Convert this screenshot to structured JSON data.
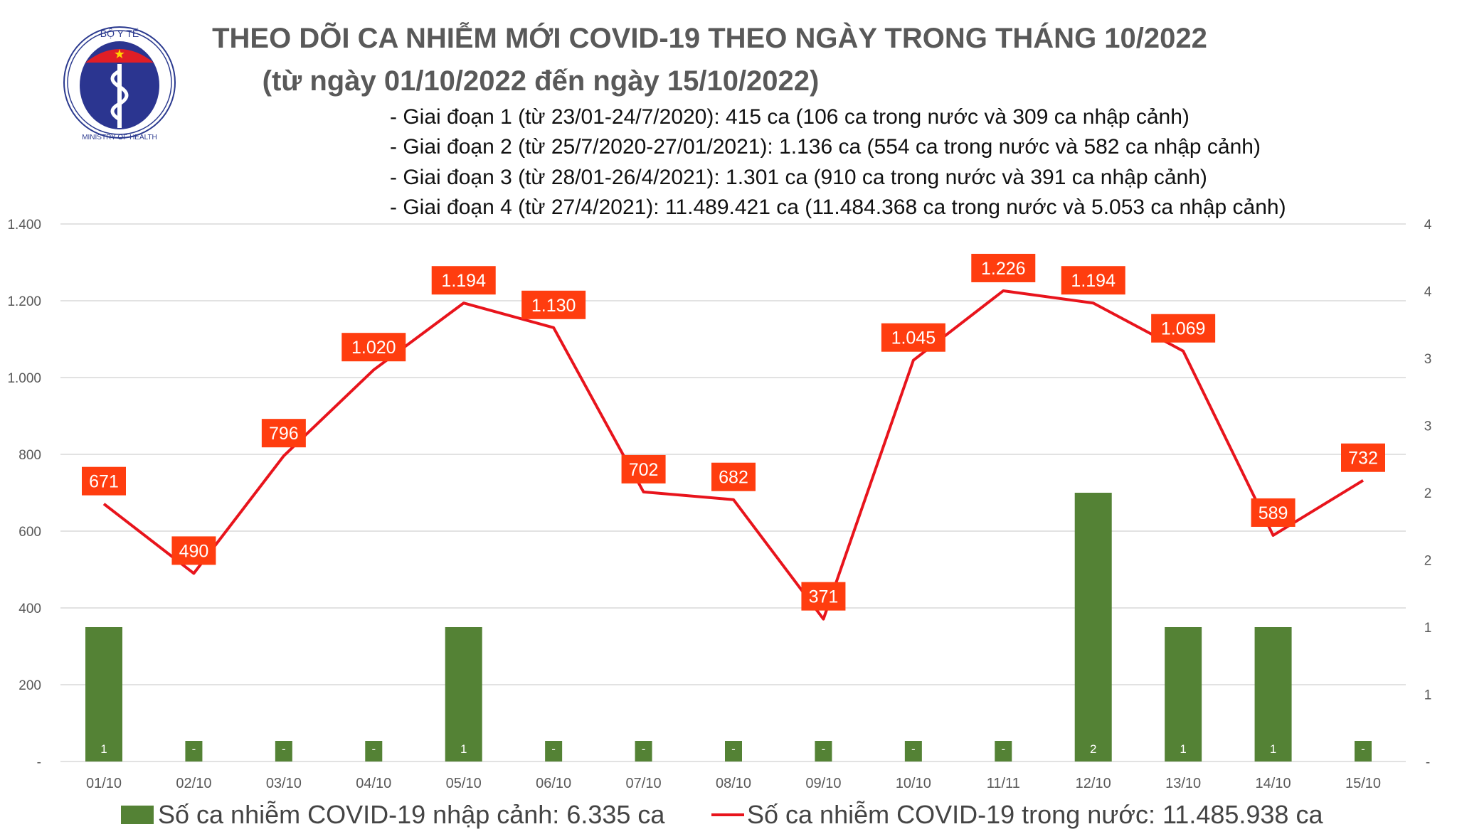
{
  "logo": {
    "top_text": "BỘ Y TẾ",
    "bottom_text": "MINISTRY OF HEALTH"
  },
  "title_line1": "THEO DÕI CA NHIỄM MỚI COVID-19 THEO NGÀY TRONG THÁNG 10/2022",
  "title_line2": "(từ ngày 01/10/2022 đến ngày 15/10/2022)",
  "notes": [
    "- Giai đoạn 1 (từ 23/01-24/7/2020): 415 ca (106 ca trong nước và 309 ca nhập cảnh)",
    "- Giai đoạn 2 (từ 25/7/2020-27/01/2021): 1.136 ca (554 ca trong nước và 582 ca nhập cảnh)",
    "- Giai đoạn 3 (từ 28/01-26/4/2021): 1.301 ca (910 ca trong nước và 391 ca nhập cảnh)",
    "- Giai đoạn 4 (từ 27/4/2021): 11.489.421 ca (11.484.368 ca trong nước và 5.053 ca nhập cảnh)"
  ],
  "chart_data": {
    "type": "bar+line",
    "categories": [
      "01/10",
      "02/10",
      "03/10",
      "04/10",
      "05/10",
      "06/10",
      "07/10",
      "08/10",
      "09/10",
      "10/10",
      "11/11",
      "12/10",
      "13/10",
      "14/10",
      "15/10"
    ],
    "series": [
      {
        "name": "Số ca nhiễm COVID-19 nhập cảnh: 6.335 ca",
        "type": "bar",
        "axis": "right",
        "color": "#548235",
        "values": [
          1,
          0,
          0,
          0,
          1,
          0,
          0,
          0,
          0,
          0,
          0,
          2,
          1,
          1,
          0
        ],
        "labels": [
          "1",
          "-",
          "-",
          "-",
          "1",
          "-",
          "-",
          "-",
          "-",
          "-",
          "-",
          "2",
          "1",
          "1",
          "-"
        ]
      },
      {
        "name": "Số ca nhiễm COVID-19 trong nước: 11.485.938 ca",
        "type": "line",
        "axis": "left",
        "color": "#e8141c",
        "label_bg": "#ff3d0f",
        "values": [
          671,
          490,
          796,
          1020,
          1194,
          1130,
          702,
          682,
          371,
          1045,
          1226,
          1194,
          1069,
          589,
          732
        ],
        "labels": [
          "671",
          "490",
          "796",
          "1.020",
          "1.194",
          "1.130",
          "702",
          "682",
          "371",
          "1.045",
          "1.226",
          "1.194",
          "1.069",
          "589",
          "732"
        ]
      }
    ],
    "left_axis": {
      "ylim": [
        0,
        1400
      ],
      "ticks": [
        "-",
        "200",
        "400",
        "600",
        "800",
        "1.000",
        "1.200",
        "1.400"
      ]
    },
    "right_axis": {
      "ylim": [
        0,
        4
      ],
      "ticks": [
        "-",
        "1",
        "1",
        "2",
        "2",
        "3",
        "3",
        "4",
        "4"
      ]
    },
    "grid": true,
    "legend": "bottom"
  }
}
